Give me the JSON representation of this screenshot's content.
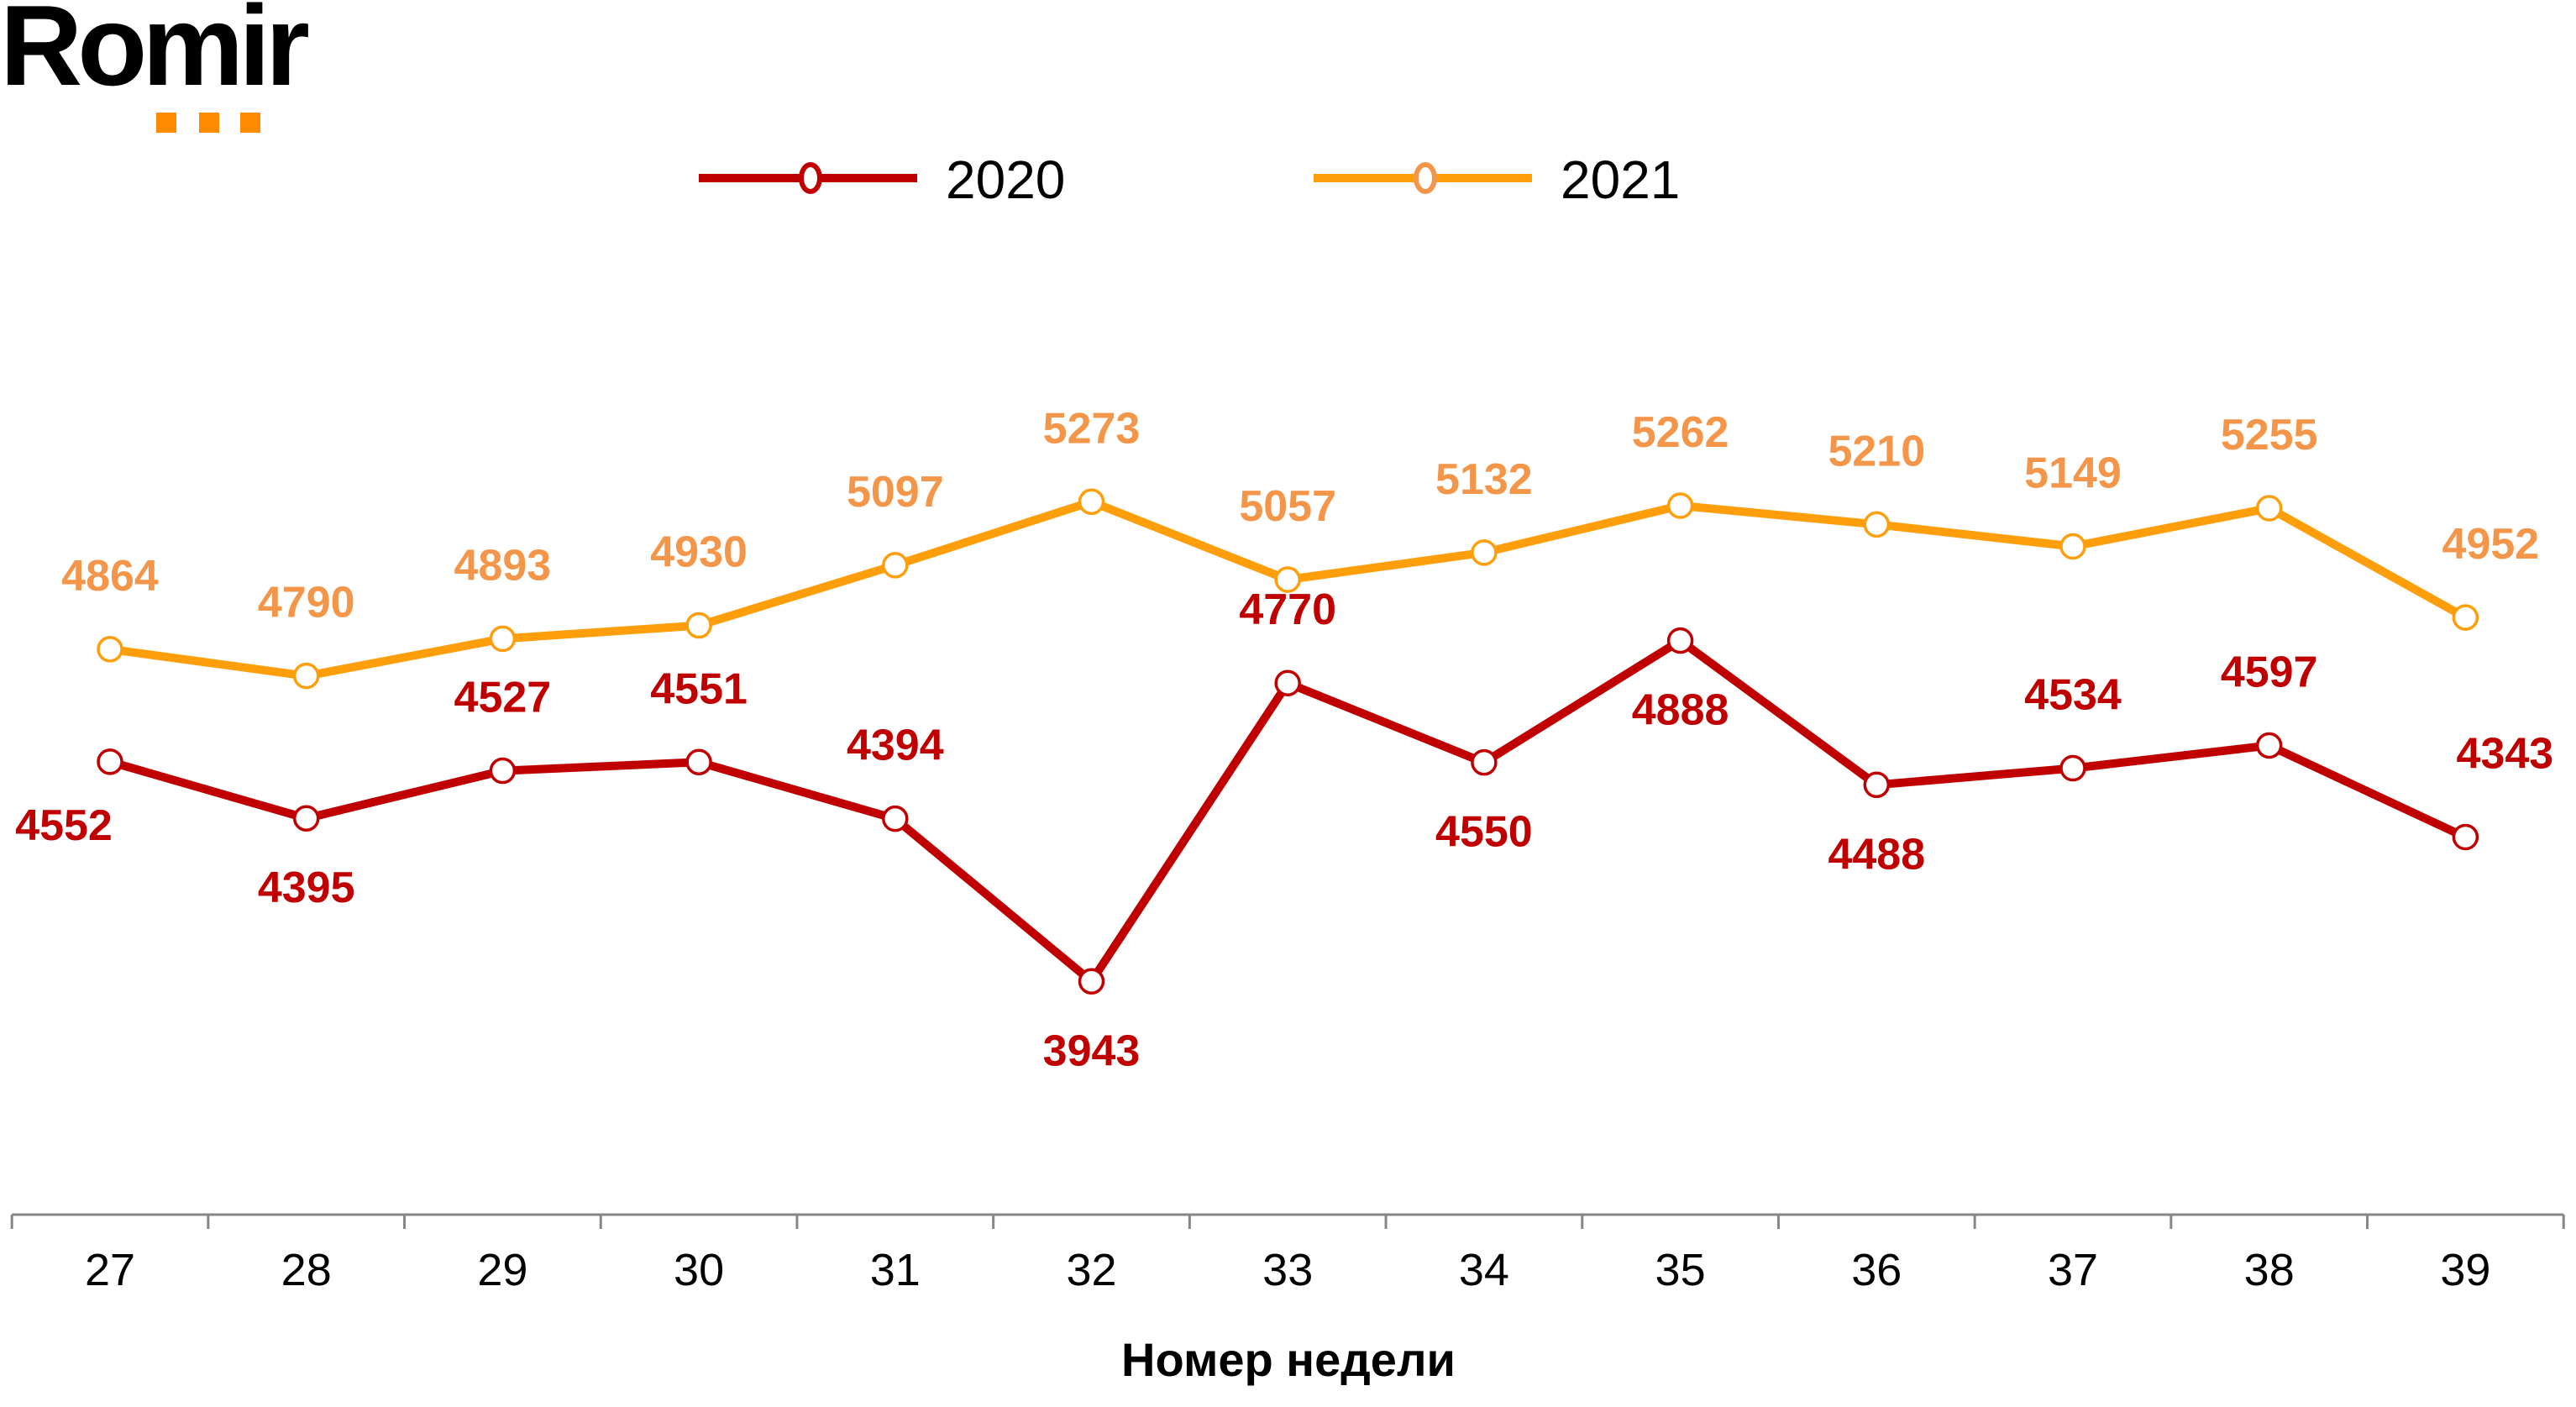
{
  "logo": {
    "text": "Romir",
    "dot_color": "#FF8A00"
  },
  "legend": [
    {
      "label": "2020",
      "color": "#C00000",
      "marker_color": "#C00000"
    },
    {
      "label": "2021",
      "color": "#FF9E0B",
      "marker_color": "#F4964A"
    }
  ],
  "chart_data": {
    "type": "line",
    "title": "",
    "xlabel": "Номер недели",
    "ylabel": "",
    "x": [
      "27",
      "28",
      "29",
      "30",
      "31",
      "32",
      "33",
      "34",
      "35",
      "36",
      "37",
      "38",
      "39"
    ],
    "series": [
      {
        "name": "2020",
        "color": "#C00000",
        "label_color": "#C00000",
        "values": [
          4552,
          4395,
          4527,
          4551,
          4394,
          3943,
          4770,
          4550,
          4888,
          4488,
          4534,
          4597,
          4343
        ],
        "label_pos": [
          "below-left",
          "below",
          "above",
          "above",
          "above",
          "below",
          "above",
          "below",
          "below",
          "below",
          "above",
          "above",
          "above-right"
        ]
      },
      {
        "name": "2021",
        "color": "#FF9E0B",
        "label_color": "#F4964A",
        "values": [
          4864,
          4790,
          4893,
          4930,
          5097,
          5273,
          5057,
          5132,
          5262,
          5210,
          5149,
          5255,
          4952
        ],
        "label_pos": [
          "above",
          "above",
          "above",
          "above",
          "above",
          "above",
          "above",
          "above",
          "above",
          "above",
          "above",
          "above",
          "above-right"
        ]
      }
    ],
    "grid": false,
    "y_axis_visible": false,
    "legend_position": "top",
    "data_labels": true
  }
}
